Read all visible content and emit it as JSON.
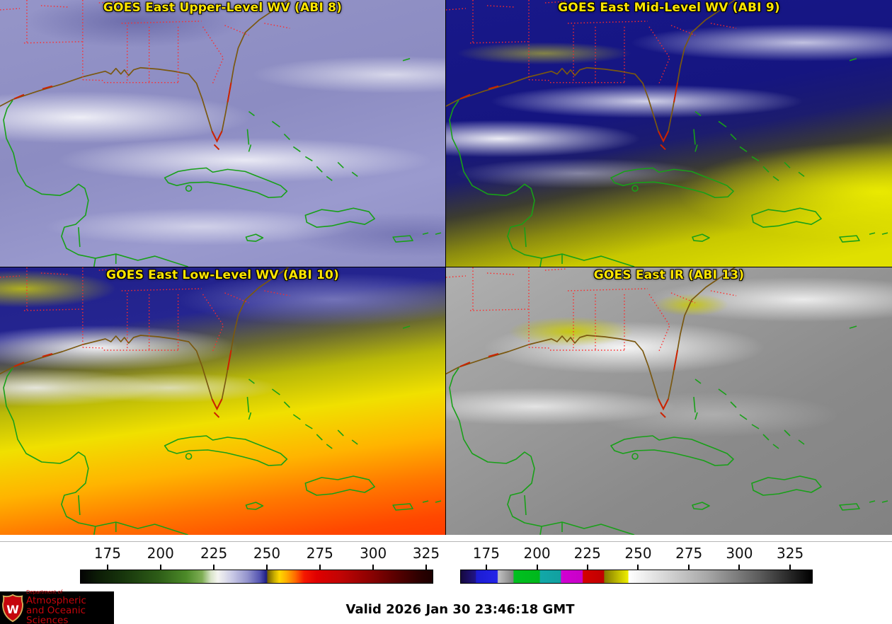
{
  "panels": [
    {
      "id": "abi8",
      "title": "GOES East Upper-Level WV (ABI 8)"
    },
    {
      "id": "abi9",
      "title": "GOES East Mid-Level WV (ABI 9)"
    },
    {
      "id": "abi10",
      "title": "GOES East Low-Level WV (ABI 10)"
    },
    {
      "id": "abi13",
      "title": "GOES East IR (ABI 13)"
    }
  ],
  "colorbars": {
    "wv": {
      "ticks": [
        {
          "label": "175",
          "pos": 7.8
        },
        {
          "label": "200",
          "pos": 22.8
        },
        {
          "label": "225",
          "pos": 37.9
        },
        {
          "label": "250",
          "pos": 52.9
        },
        {
          "label": "275",
          "pos": 67.9
        },
        {
          "label": "300",
          "pos": 83.0
        },
        {
          "label": "325",
          "pos": 98.0
        }
      ],
      "stops": [
        {
          "p": 0,
          "c": "#040404"
        },
        {
          "p": 5,
          "c": "#0c1c06"
        },
        {
          "p": 12,
          "c": "#17350c"
        },
        {
          "p": 22,
          "c": "#2d5c17"
        },
        {
          "p": 30,
          "c": "#4c8a28"
        },
        {
          "p": 34.5,
          "c": "#7fae55"
        },
        {
          "p": 37,
          "c": "#d8e4c8"
        },
        {
          "p": 39,
          "c": "#f4f4f0"
        },
        {
          "p": 43,
          "c": "#cacae6"
        },
        {
          "p": 47.5,
          "c": "#9292cc"
        },
        {
          "p": 51,
          "c": "#5252b0"
        },
        {
          "p": 52.8,
          "c": "#1e1e84"
        },
        {
          "p": 53.2,
          "c": "#786400"
        },
        {
          "p": 55,
          "c": "#c8ac00"
        },
        {
          "p": 56.5,
          "c": "#ffd800"
        },
        {
          "p": 58.5,
          "c": "#ffae00"
        },
        {
          "p": 61,
          "c": "#ff6a00"
        },
        {
          "p": 63.5,
          "c": "#f51800"
        },
        {
          "p": 67,
          "c": "#e00000"
        },
        {
          "p": 74,
          "c": "#c00404"
        },
        {
          "p": 82,
          "c": "#8e0202"
        },
        {
          "p": 90,
          "c": "#560000"
        },
        {
          "p": 96,
          "c": "#2e0000"
        },
        {
          "p": 100,
          "c": "#1c0000"
        }
      ]
    },
    "ir": {
      "ticks": [
        {
          "label": "175",
          "pos": 7.4
        },
        {
          "label": "200",
          "pos": 21.8
        },
        {
          "label": "225",
          "pos": 36.1
        },
        {
          "label": "250",
          "pos": 50.5
        },
        {
          "label": "275",
          "pos": 64.9
        },
        {
          "label": "300",
          "pos": 79.2
        },
        {
          "label": "325",
          "pos": 93.6
        }
      ],
      "stops": [
        {
          "p": 0,
          "c": "#16093e"
        },
        {
          "p": 4.2,
          "c": "#201488"
        },
        {
          "p": 4.4,
          "c": "#1c1cd2"
        },
        {
          "p": 10.4,
          "c": "#2424e8"
        },
        {
          "p": 10.6,
          "c": "#c2c2c2"
        },
        {
          "p": 14.9,
          "c": "#828282"
        },
        {
          "p": 15.1,
          "c": "#00c020"
        },
        {
          "p": 22.4,
          "c": "#00b81c"
        },
        {
          "p": 22.6,
          "c": "#12a8a8"
        },
        {
          "p": 28.4,
          "c": "#12a0a0"
        },
        {
          "p": 28.6,
          "c": "#d200d2"
        },
        {
          "p": 34.6,
          "c": "#c800c8"
        },
        {
          "p": 34.8,
          "c": "#d40000"
        },
        {
          "p": 40.7,
          "c": "#c00000"
        },
        {
          "p": 40.9,
          "c": "#837a00"
        },
        {
          "p": 47.6,
          "c": "#eeee00"
        },
        {
          "p": 47.8,
          "c": "#ffffff"
        },
        {
          "p": 70,
          "c": "#a8a8a8"
        },
        {
          "p": 85,
          "c": "#5c5c5c"
        },
        {
          "p": 100,
          "c": "#000000"
        }
      ]
    }
  },
  "map_colors": {
    "state_border": "#ff2a2a",
    "us_coastline": "#7a5810",
    "coast_accent": "#cc2200",
    "intl_coastline": "#18a018",
    "panel_title_text": "#ffe600"
  },
  "footer": {
    "valid_time": "Valid 2026 Jan 30 23:46:18 GMT",
    "logo": {
      "crest_letter": "W",
      "dept": "Department of",
      "line1": "Atmospheric",
      "line2": "and Oceanic Sciences",
      "brand_red": "#c5050c",
      "brand_gold": "#d4af5a"
    }
  }
}
